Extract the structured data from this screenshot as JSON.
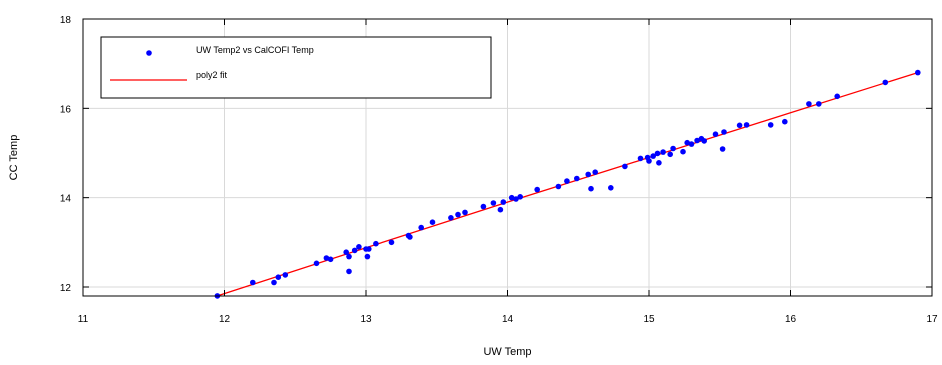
{
  "chart_data": {
    "type": "scatter",
    "title": "",
    "xlabel": "UW Temp",
    "ylabel": "CC Temp",
    "xlim": [
      11,
      17
    ],
    "ylim": [
      11.8,
      18
    ],
    "x_ticks": [
      "11",
      "12",
      "13",
      "14",
      "15",
      "16",
      "17"
    ],
    "y_ticks": [
      "12",
      "14",
      "16",
      "18"
    ],
    "grid": true,
    "legend_position": "top-left",
    "series": [
      {
        "name": "UW Temp2 vs CalCOFI Temp",
        "kind": "scatter",
        "color": "#0000ff",
        "points": [
          [
            11.95,
            11.8
          ],
          [
            12.2,
            12.1
          ],
          [
            12.35,
            12.1
          ],
          [
            12.38,
            12.22
          ],
          [
            12.43,
            12.27
          ],
          [
            12.65,
            12.53
          ],
          [
            12.72,
            12.65
          ],
          [
            12.75,
            12.62
          ],
          [
            12.86,
            12.78
          ],
          [
            12.88,
            12.68
          ],
          [
            12.88,
            12.35
          ],
          [
            12.92,
            12.82
          ],
          [
            12.95,
            12.9
          ],
          [
            13.0,
            12.85
          ],
          [
            13.01,
            12.68
          ],
          [
            13.02,
            12.85
          ],
          [
            13.07,
            12.97
          ],
          [
            13.18,
            13.0
          ],
          [
            13.3,
            13.15
          ],
          [
            13.31,
            13.12
          ],
          [
            13.39,
            13.33
          ],
          [
            13.47,
            13.45
          ],
          [
            13.6,
            13.55
          ],
          [
            13.65,
            13.62
          ],
          [
            13.7,
            13.67
          ],
          [
            13.83,
            13.8
          ],
          [
            13.9,
            13.88
          ],
          [
            13.95,
            13.73
          ],
          [
            13.97,
            13.9
          ],
          [
            14.03,
            14.0
          ],
          [
            14.06,
            13.97
          ],
          [
            14.09,
            14.02
          ],
          [
            14.21,
            14.18
          ],
          [
            14.36,
            14.25
          ],
          [
            14.42,
            14.37
          ],
          [
            14.49,
            14.43
          ],
          [
            14.57,
            14.52
          ],
          [
            14.59,
            14.2
          ],
          [
            14.62,
            14.57
          ],
          [
            14.73,
            14.22
          ],
          [
            14.83,
            14.7
          ],
          [
            14.94,
            14.88
          ],
          [
            14.99,
            14.9
          ],
          [
            15.0,
            14.82
          ],
          [
            15.03,
            14.93
          ],
          [
            15.06,
            14.99
          ],
          [
            15.07,
            14.78
          ],
          [
            15.1,
            15.02
          ],
          [
            15.15,
            14.97
          ],
          [
            15.17,
            15.1
          ],
          [
            15.24,
            15.03
          ],
          [
            15.27,
            15.23
          ],
          [
            15.3,
            15.2
          ],
          [
            15.34,
            15.28
          ],
          [
            15.37,
            15.32
          ],
          [
            15.39,
            15.27
          ],
          [
            15.47,
            15.42
          ],
          [
            15.52,
            15.09
          ],
          [
            15.53,
            15.47
          ],
          [
            15.64,
            15.62
          ],
          [
            15.69,
            15.63
          ],
          [
            15.86,
            15.63
          ],
          [
            15.96,
            15.7
          ],
          [
            16.13,
            16.1
          ],
          [
            16.2,
            16.1
          ],
          [
            16.33,
            16.27
          ],
          [
            16.67,
            16.58
          ],
          [
            16.9,
            16.8
          ]
        ]
      },
      {
        "name": "poly2 fit",
        "kind": "line",
        "color": "#ff0000",
        "points": [
          [
            11.95,
            11.8
          ],
          [
            13.0,
            12.88
          ],
          [
            14.0,
            13.9
          ],
          [
            15.0,
            14.9
          ],
          [
            16.0,
            15.9
          ],
          [
            16.9,
            16.8
          ]
        ]
      }
    ]
  }
}
